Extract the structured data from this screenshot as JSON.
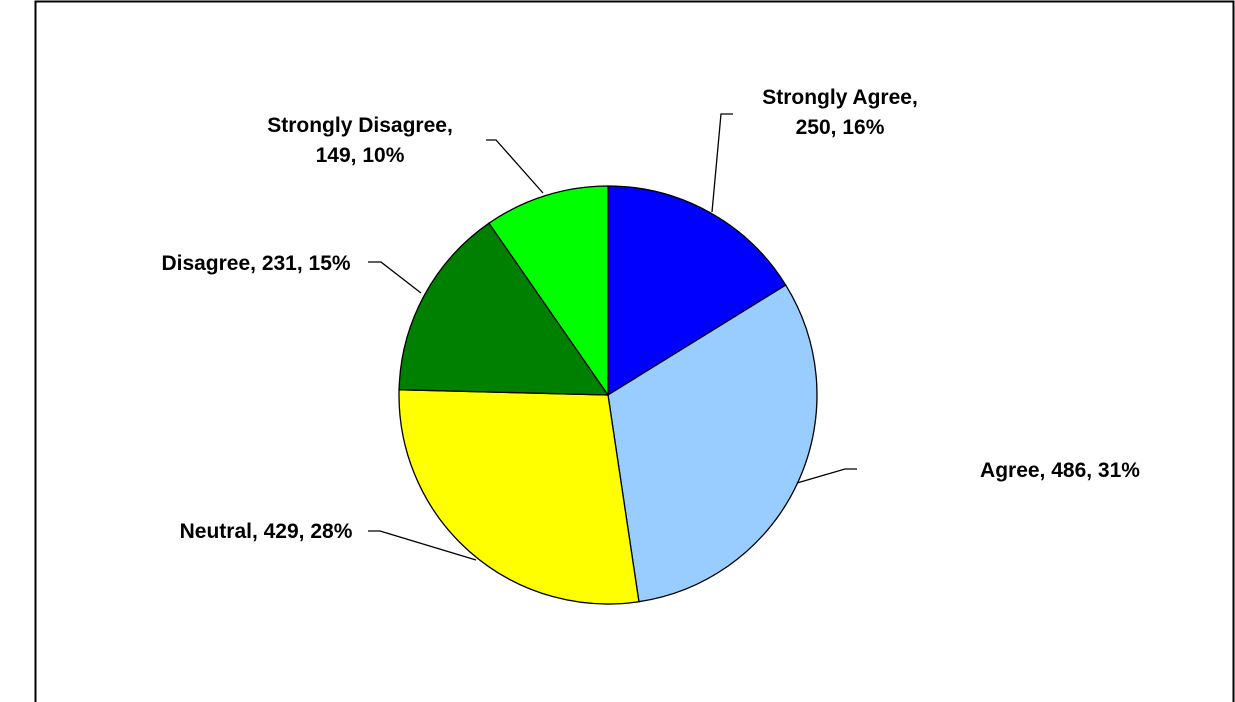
{
  "chart_data": {
    "type": "pie",
    "title": "",
    "categories": [
      "Strongly Agree",
      "Agree",
      "Neutral",
      "Disagree",
      "Strongly Disagree"
    ],
    "values": [
      250,
      486,
      429,
      231,
      149
    ],
    "percent_labels": [
      "16%",
      "31%",
      "28%",
      "15%",
      "10%"
    ],
    "colors": [
      "#0000FF",
      "#99CCFF",
      "#FFFF00",
      "#008000",
      "#00FF00"
    ],
    "labels": [
      {
        "lines": [
          "Strongly Agree,",
          "250, 16%"
        ]
      },
      {
        "lines": [
          "Agree, 486, 31%"
        ]
      },
      {
        "lines": [
          "Neutral, 429, 28%"
        ]
      },
      {
        "lines": [
          "Disagree, 231, 15%"
        ]
      },
      {
        "lines": [
          "Strongly Disagree,",
          "149, 10%"
        ]
      }
    ],
    "legend": "none"
  }
}
